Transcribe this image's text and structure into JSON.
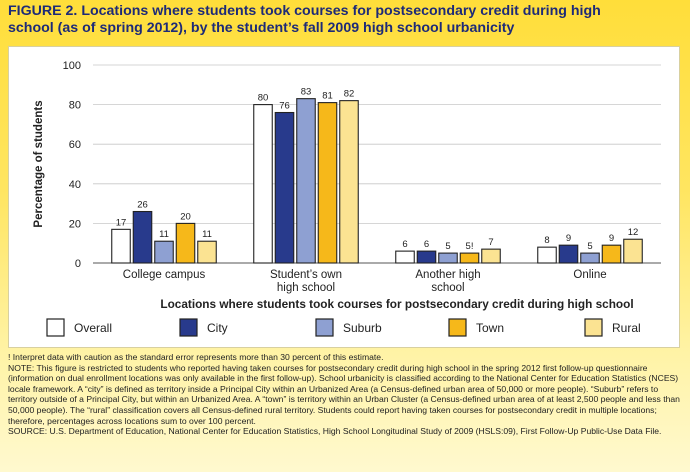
{
  "title_line1": "FIGURE 2. Locations where students took courses for postsecondary credit during high",
  "title_line2": "school (as of spring 2012), by the student’s fall 2009 high school urbanicity",
  "chart_data": {
    "type": "bar",
    "title": "",
    "ylabel": "Percentage of students",
    "xlabel": "Locations where students took courses for postsecondary credit during high school",
    "ylim": [
      0,
      100
    ],
    "yticks": [
      "0",
      "20",
      "40",
      "60",
      "80",
      "100"
    ],
    "grid": true,
    "categories": [
      [
        "College campus"
      ],
      [
        "Student’s own",
        "high school"
      ],
      [
        "Another high",
        "school"
      ],
      [
        "Online"
      ]
    ],
    "series": [
      {
        "name": "Overall",
        "color": "#ffffff",
        "values": [
          17,
          80,
          6,
          8
        ],
        "labels": [
          "17",
          "80",
          "6",
          "8"
        ]
      },
      {
        "name": "City",
        "color": "#283a8c",
        "values": [
          26,
          76,
          6,
          9
        ],
        "labels": [
          "26",
          "76",
          "6",
          "9"
        ]
      },
      {
        "name": "Suburb",
        "color": "#8ea0d2",
        "values": [
          11,
          83,
          5,
          5
        ],
        "labels": [
          "11",
          "83",
          "5",
          "5"
        ]
      },
      {
        "name": "Town",
        "color": "#f6b81a",
        "values": [
          20,
          81,
          5,
          9
        ],
        "labels": [
          "20",
          "81",
          "5!",
          "9"
        ]
      },
      {
        "name": "Rural",
        "color": "#fbe392",
        "values": [
          11,
          82,
          7,
          12
        ],
        "labels": [
          "11",
          "82",
          "7",
          "12"
        ]
      }
    ],
    "legend_position": "bottom"
  },
  "notes": {
    "interpret": "! Interpret data with caution as the standard error represents more than 30 percent of this estimate.",
    "note": "NOTE: This figure is restricted to students who reported having taken courses for postsecondary credit during high school in the spring 2012 first follow-up questionnaire (information on dual enrollment locations was only available in the first follow-up). School urbanicity is classified according to the National Center for Education Statistics (NCES) locale framework. A “city” is defined as territory inside a Principal City within an Urbanized Area (a Census-defined urban area of 50,000 or more people). “Suburb” refers to territory outside of a Principal City, but within an Urbanized Area. A “town” is territory within an Urban Cluster (a Census-defined urban area of at least 2,500 people and less than 50,000 people). The “rural” classification covers all Census-defined rural territory. Students could report having taken courses for postsecondary credit in multiple locations; therefore, percentages across locations sum to over 100 percent.",
    "source": "SOURCE: U.S. Department of Education, National Center for Education Statistics, High School Longitudinal Study of 2009 (HSLS:09), First Follow-Up Public-Use Data File."
  }
}
